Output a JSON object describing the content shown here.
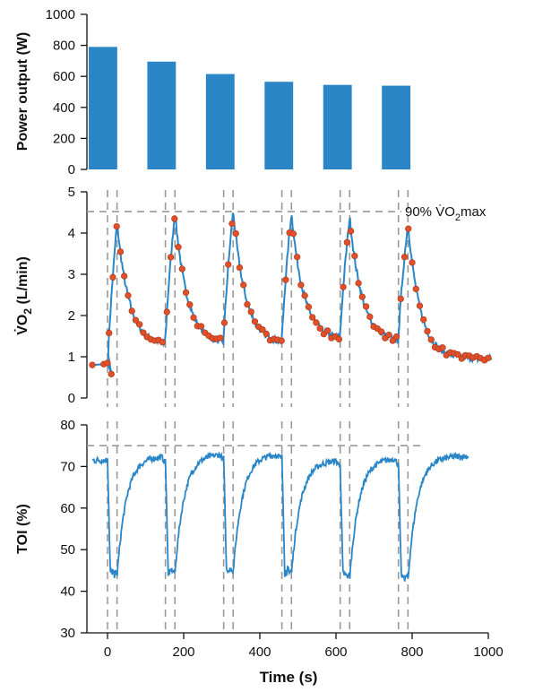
{
  "colors": {
    "bar": "#2a86c7",
    "line": "#2a86c7",
    "marker": "#e0502a",
    "marker_edge": "#b23a19",
    "dash": "#999999"
  },
  "chart_data": [
    {
      "type": "bar",
      "panel": "top",
      "ylabel": "Power output (W)",
      "ylim": [
        0,
        1000
      ],
      "yticks": [
        "0",
        "200",
        "400",
        "600",
        "800",
        "1000"
      ],
      "bars": [
        {
          "x": -12,
          "value": 790
        },
        {
          "x": 142,
          "value": 695
        },
        {
          "x": 296,
          "value": 615
        },
        {
          "x": 450,
          "value": 565
        },
        {
          "x": 604,
          "value": 545
        },
        {
          "x": 758,
          "value": 540
        }
      ],
      "bar_width": 75
    },
    {
      "type": "scatter",
      "panel": "middle",
      "ylabel_main": "V̇O",
      "ylabel_sub": "2",
      "ylabel_rest": " (L/min)",
      "ylim": [
        0,
        5
      ],
      "yticks": [
        "0",
        "1",
        "2",
        "3",
        "4",
        "5"
      ],
      "annotation": {
        "pre": "90% V̇O",
        "sub": "2",
        "post": "max",
        "y": 4.52
      },
      "baseline": [
        [
          -40,
          0.8
        ],
        [
          -10,
          0.82
        ],
        [
          0,
          0.85
        ],
        [
          10,
          0.58
        ]
      ],
      "cycles": [
        {
          "start": 0,
          "peak": 4.25,
          "end": 1.25
        },
        {
          "start": 152,
          "peak": 4.5,
          "end": 1.3
        },
        {
          "start": 305,
          "peak": 4.55,
          "end": 1.3
        },
        {
          "start": 458,
          "peak": 4.5,
          "end": 1.4
        },
        {
          "start": 611,
          "peak": 4.4,
          "end": 1.35
        },
        {
          "start": 764,
          "peak": 4.25,
          "end": 0.95
        }
      ],
      "marker_stride": 5,
      "tail_end": 1010
    },
    {
      "type": "line",
      "panel": "bottom",
      "ylabel": "TOI (%)",
      "xlabel": "Time (s)",
      "ylim": [
        30,
        80
      ],
      "xlim": [
        -60,
        1000
      ],
      "yticks": [
        "30",
        "40",
        "50",
        "60",
        "70",
        "80"
      ],
      "xticks": [
        "0",
        "200",
        "400",
        "600",
        "800",
        "1000"
      ],
      "reference_y": 75,
      "baseline": 71.5,
      "cycles": [
        {
          "start": 0,
          "min": 43.5,
          "top": 72.5
        },
        {
          "start": 152,
          "min": 44,
          "top": 73
        },
        {
          "start": 305,
          "min": 44.5,
          "top": 73
        },
        {
          "start": 458,
          "min": 44,
          "top": 71.5
        },
        {
          "start": 611,
          "min": 43,
          "top": 72
        },
        {
          "start": 764,
          "min": 42.5,
          "top": 72.5
        }
      ],
      "tail_end": 950
    }
  ],
  "interval_lines": [
    [
      0,
      25
    ],
    [
      152,
      177
    ],
    [
      305,
      330
    ],
    [
      458,
      483
    ],
    [
      611,
      636
    ],
    [
      764,
      789
    ]
  ]
}
